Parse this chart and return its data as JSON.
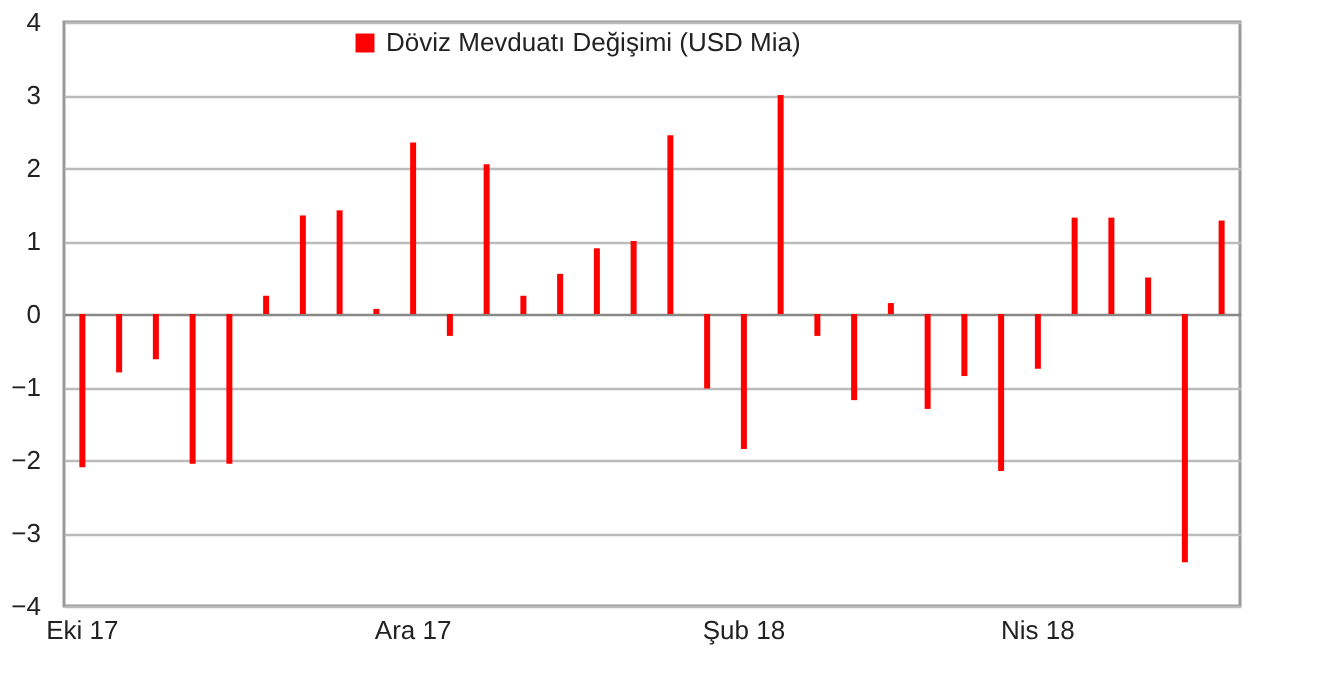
{
  "chart_data": {
    "type": "bar",
    "categories": [
      "Eki 17",
      null,
      null,
      null,
      null,
      null,
      null,
      null,
      null,
      "Ara 17",
      null,
      null,
      null,
      null,
      null,
      null,
      null,
      null,
      "Şub 18",
      null,
      null,
      null,
      null,
      null,
      null,
      null,
      "Nis 18",
      null,
      null,
      null,
      null,
      null
    ],
    "series": [
      {
        "name": "Döviz Mevduatı Değişimi (USD Mia)",
        "color": "#ff0000",
        "values": [
          -2.1,
          -0.8,
          -0.62,
          -2.05,
          -2.05,
          0.25,
          1.35,
          1.42,
          0.07,
          2.35,
          -0.3,
          2.05,
          0.25,
          0.55,
          0.9,
          1.0,
          2.45,
          -1.02,
          -1.85,
          3.0,
          -0.3,
          -1.18,
          0.15,
          -1.3,
          -0.85,
          -2.15,
          -0.75,
          1.32,
          1.32,
          0.5,
          -3.4,
          1.28
        ]
      }
    ],
    "ylim": [
      -4,
      4
    ],
    "yticks": [
      -4,
      -3,
      -2,
      -1,
      0,
      1,
      2,
      3,
      4
    ],
    "grid": "y",
    "legend": "top"
  }
}
